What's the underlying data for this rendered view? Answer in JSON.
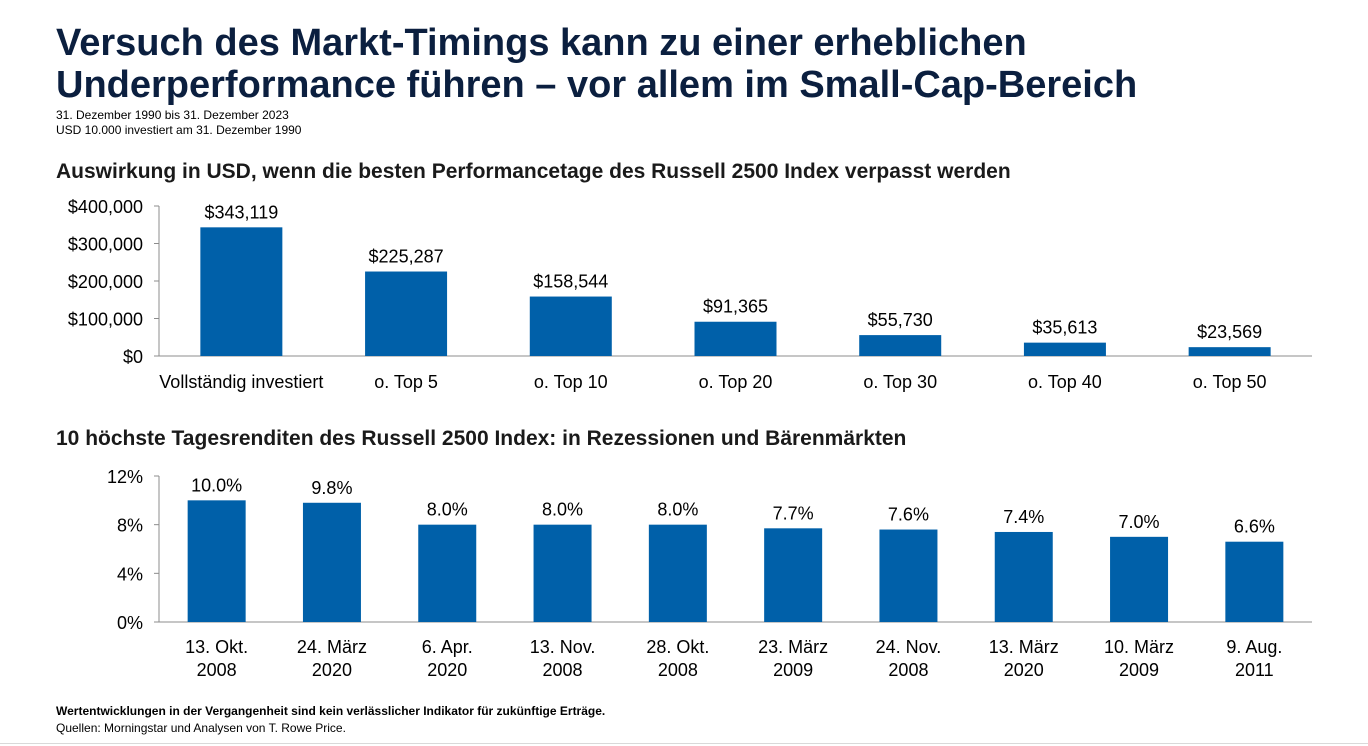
{
  "title": {
    "line1": "Versuch des Markt-Timings kann zu einer erheblichen",
    "line2": "Underperformance führen – vor allem im Small-Cap-Bereich"
  },
  "subtitle": {
    "period": "31. Dezember 1990 bis 31. Dezember 2023",
    "investment": "USD 10.000 investiert am 31. Dezember 1990"
  },
  "footer": {
    "disclaimer": "Wertentwicklungen in der Vergangenheit sind kein verlässlicher Indikator für zukünftige Erträge.",
    "sources": "Quellen: Morningstar und Analysen von T. Rowe Price."
  },
  "colors": {
    "bar": "#0060a9",
    "axis": "#8c8c8c"
  },
  "chart_data": [
    {
      "type": "bar",
      "title": "Auswirkung in USD, wenn die besten Performancetage des Russell 2500 Index verpasst werden",
      "categories": [
        "Vollständig investiert",
        "o. Top 5",
        "o. Top 10",
        "o. Top 20",
        "o. Top 30",
        "o. Top 40",
        "o. Top 50"
      ],
      "values": [
        343119,
        225287,
        158544,
        91365,
        55730,
        35613,
        23569
      ],
      "data_labels": [
        "$343,119",
        "$225,287",
        "$158,544",
        "$91,365",
        "$55,730",
        "$35,613",
        "$23,569"
      ],
      "yticks": [
        "$0",
        "$100,000",
        "$200,000",
        "$300,000",
        "$400,000"
      ],
      "ytick_values": [
        0,
        100000,
        200000,
        300000,
        400000
      ],
      "ylim": [
        0,
        400000
      ],
      "xlabel": "",
      "ylabel": "",
      "grid": false
    },
    {
      "type": "bar",
      "title": "10 höchste Tagesrenditen des Russell 2500 Index: in Rezessionen und Bärenmärkten",
      "categories": [
        [
          "13. Okt.",
          "2008"
        ],
        [
          "24. März",
          "2020"
        ],
        [
          "6. Apr.",
          "2020"
        ],
        [
          "13. Nov.",
          "2008"
        ],
        [
          "28. Okt.",
          "2008"
        ],
        [
          "23. März",
          "2009"
        ],
        [
          "24. Nov.",
          "2008"
        ],
        [
          "13. März",
          "2020"
        ],
        [
          "10. März",
          "2009"
        ],
        [
          "9. Aug.",
          "2011"
        ]
      ],
      "values": [
        10.0,
        9.8,
        8.0,
        8.0,
        8.0,
        7.7,
        7.6,
        7.4,
        7.0,
        6.6
      ],
      "data_labels": [
        "10.0%",
        "9.8%",
        "8.0%",
        "8.0%",
        "8.0%",
        "7.7%",
        "7.6%",
        "7.4%",
        "7.0%",
        "6.6%"
      ],
      "yticks": [
        "0%",
        "4%",
        "8%",
        "12%"
      ],
      "ytick_values": [
        0,
        4,
        8,
        12
      ],
      "ylim": [
        0,
        12
      ],
      "xlabel": "",
      "ylabel": "",
      "grid": false
    }
  ]
}
